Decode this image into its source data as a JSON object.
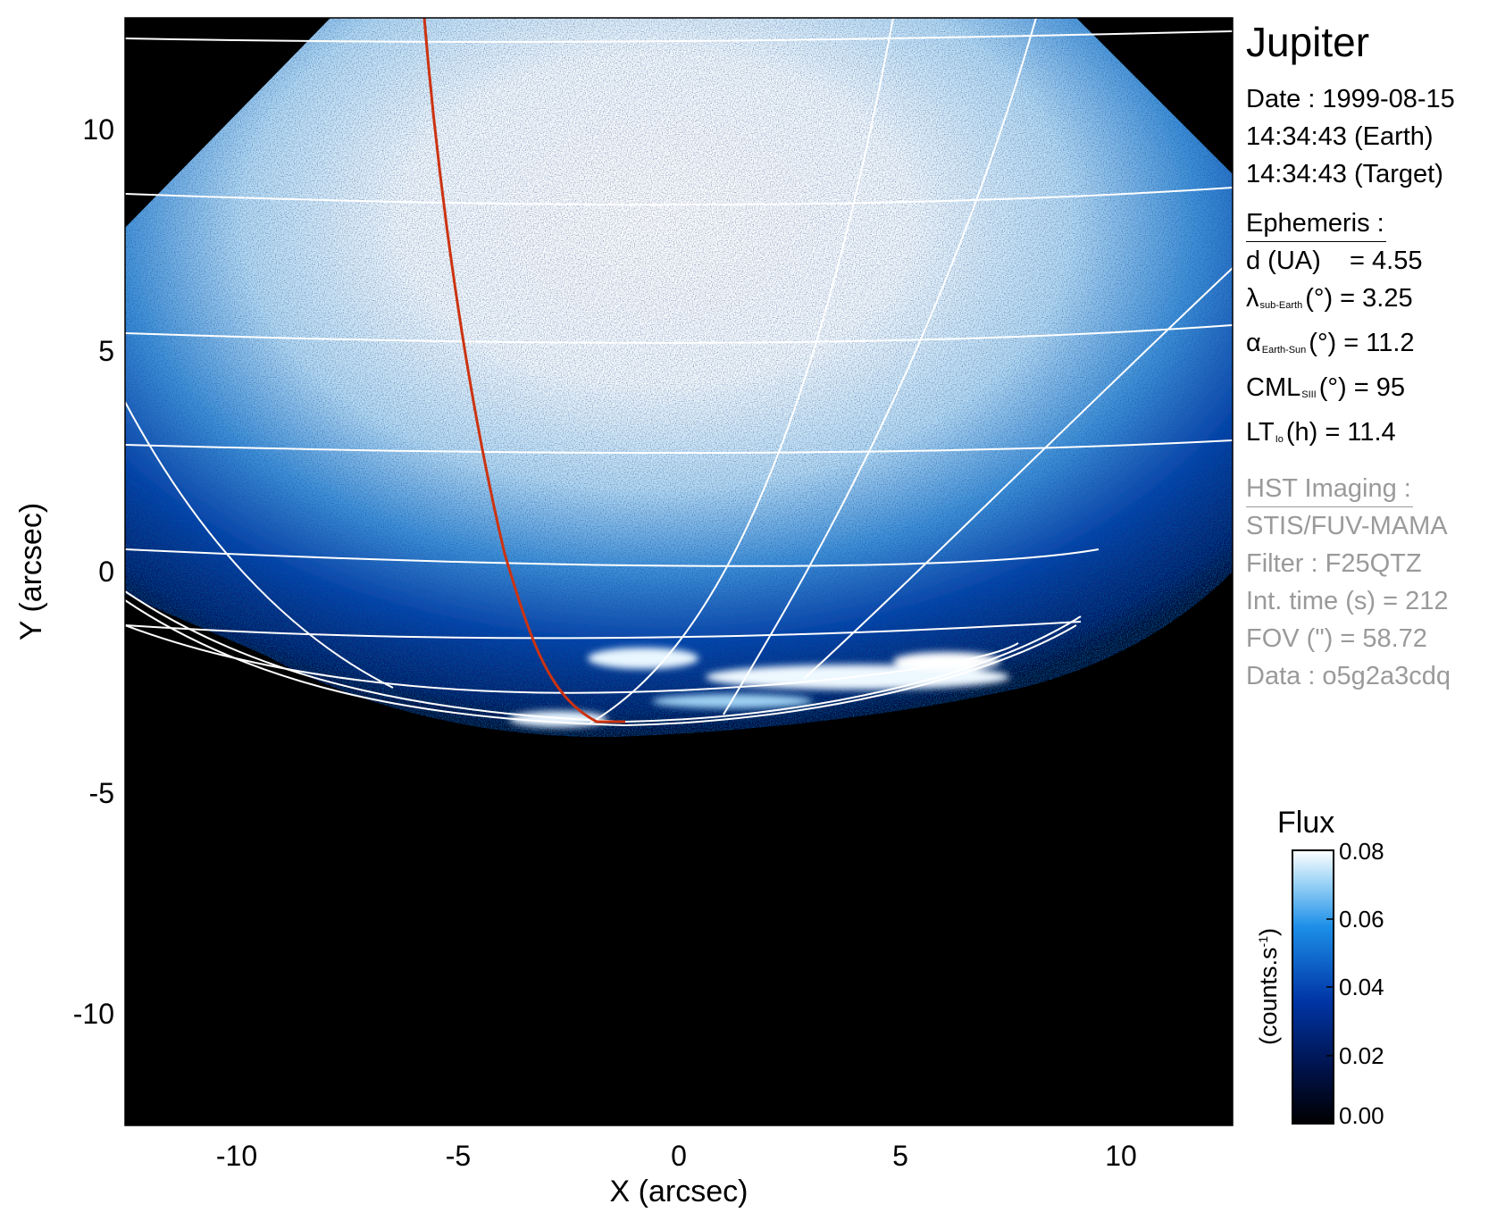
{
  "figure": {
    "xlabel": "X (arcsec)",
    "ylabel": "Y (arcsec)",
    "xlim": [
      -12.5,
      12.5
    ],
    "ylim": [
      -12.5,
      12.5
    ],
    "xticks": [
      "-10",
      "-5",
      "0",
      "5",
      "10"
    ],
    "yticks": [
      "10",
      "5",
      "0",
      "-5",
      "-10"
    ]
  },
  "info": {
    "title": "Jupiter",
    "date_line": "Date : 1999-08-15",
    "earth_time": "14:34:43 (Earth)",
    "target_time": "14:34:43 (Target)",
    "ephemeris": {
      "header": "Ephemeris :",
      "d_label": "d (UA)",
      "d_value": "= 4.55",
      "lambda_symbol": "λ",
      "lambda_sub": "sub-Earth",
      "lambda_rest": "(°) = 3.25",
      "alpha_symbol": "α",
      "alpha_sub": "Earth-Sun",
      "alpha_rest": "(°) = 11.2",
      "cml_label": "CML",
      "cml_sub": "SIII",
      "cml_rest": "(°) = 95",
      "lt_label": "LT",
      "lt_sub": "Io",
      "lt_rest": "(h) = 11.4"
    },
    "hst": {
      "header": "HST Imaging :",
      "instrument": "STIS/FUV-MAMA",
      "filter": "Filter : F25QTZ",
      "int_time": "Int. time (s) = 212",
      "fov": "FOV (\") = 58.72",
      "data": "Data : o5g2a3cdq"
    }
  },
  "colorbar": {
    "title": "Flux",
    "unit_main": "(counts.s",
    "unit_sup": "-1",
    "unit_close": ")",
    "ticks": [
      "0.08",
      "0.06",
      "0.04",
      "0.02",
      "0.00"
    ],
    "range": [
      0.0,
      0.08
    ]
  },
  "colors": {
    "io_footpath": "#cc3311",
    "grid": "#ffffff",
    "background": "#000000"
  }
}
